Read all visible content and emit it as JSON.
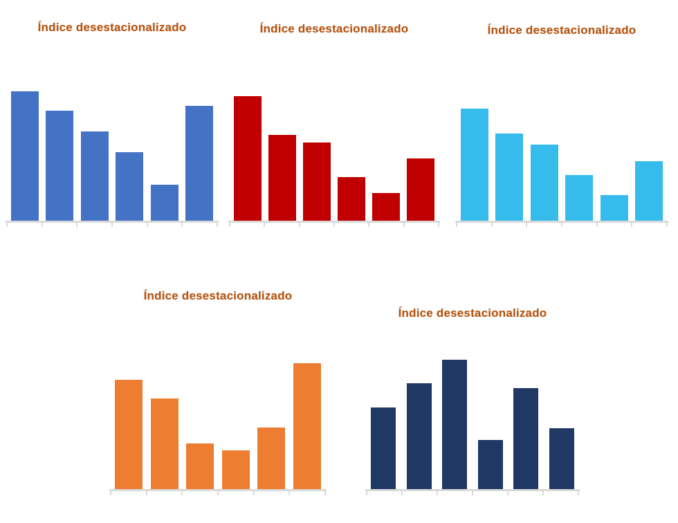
{
  "page": {
    "background": "#FFFFFF"
  },
  "colors": {
    "title_text": "#B4530F",
    "axis_line": "#D9D9D9",
    "series_blue": "#4472C4",
    "series_red": "#C00000",
    "series_cyan": "#35BCEC",
    "series_orange": "#ED7D31",
    "series_navy": "#1F3864"
  },
  "chart_data": [
    {
      "type": "bar",
      "title": "Índice desestacionalizado",
      "color": "#4472C4",
      "categories": [
        "",
        "",
        "",
        "",
        "",
        ""
      ],
      "values": [
        100,
        85,
        69,
        53,
        28,
        89
      ],
      "ylim": [
        0,
        100
      ],
      "grid": false,
      "legend": false,
      "axis_ticks": 7
    },
    {
      "type": "bar",
      "title": "Índice desestacionalizado",
      "color": "#C00000",
      "categories": [
        "",
        "",
        "",
        "",
        "",
        ""
      ],
      "values": [
        100,
        69,
        63,
        35,
        22,
        50
      ],
      "ylim": [
        0,
        100
      ],
      "grid": false,
      "legend": false,
      "axis_ticks": 7
    },
    {
      "type": "bar",
      "title": "Índice desestacionalizado",
      "color": "#35BCEC",
      "categories": [
        "",
        "",
        "",
        "",
        "",
        ""
      ],
      "values": [
        100,
        78,
        68,
        41,
        23,
        53
      ],
      "ylim": [
        0,
        100
      ],
      "grid": false,
      "legend": false,
      "axis_ticks": 7
    },
    {
      "type": "bar",
      "title": "Índice desestacionalizado",
      "color": "#ED7D31",
      "categories": [
        "",
        "",
        "",
        "",
        "",
        ""
      ],
      "values": [
        87,
        72,
        36,
        31,
        49,
        100
      ],
      "ylim": [
        0,
        100
      ],
      "grid": false,
      "legend": false,
      "axis_ticks": 7
    },
    {
      "type": "bar",
      "title": "Índice desestacionalizado",
      "color": "#1F3864",
      "categories": [
        "",
        "",
        "",
        "",
        "",
        ""
      ],
      "values": [
        63,
        82,
        100,
        38,
        78,
        47
      ],
      "ylim": [
        0,
        100
      ],
      "grid": false,
      "legend": false,
      "axis_ticks": 7
    }
  ]
}
